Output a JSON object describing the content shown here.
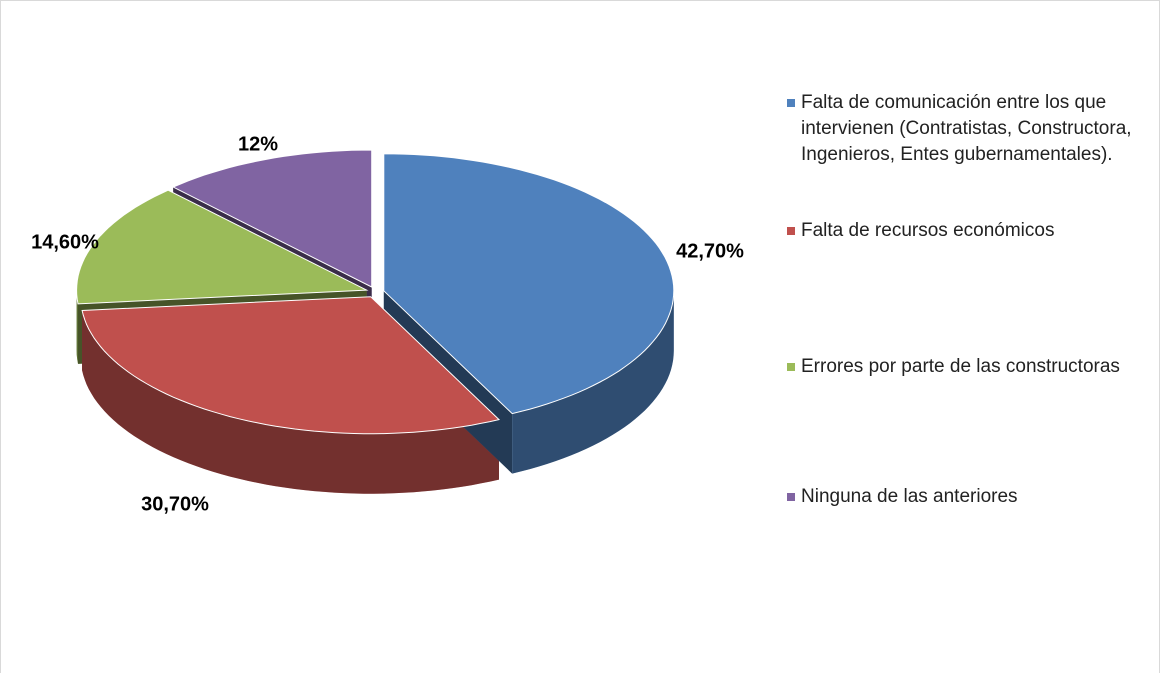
{
  "chart_data": {
    "type": "pie3d",
    "categories": [
      "Falta de comunicación entre los que intervienen (Contratistas, Constructora, Ingenieros, Entes gubernamentales).",
      "Falta de recursos económicos",
      "Errores por parte de las constructoras",
      "Ninguna de las anteriores"
    ],
    "values": [
      42.7,
      30.7,
      14.6,
      12
    ],
    "value_labels": [
      "42,70%",
      "30,70%",
      "14,60%",
      "12%"
    ],
    "colors": [
      "#4f81bd",
      "#c0504d",
      "#9bbb59",
      "#8064a2"
    ],
    "legend": "right"
  }
}
